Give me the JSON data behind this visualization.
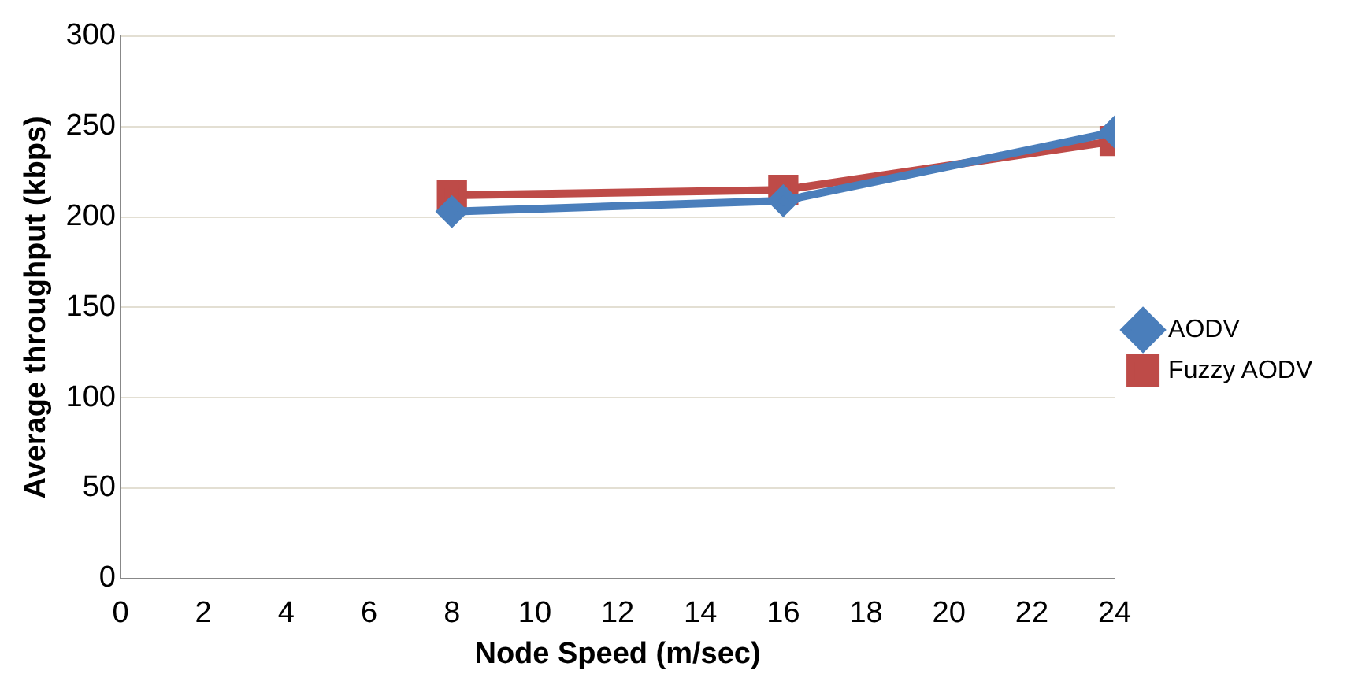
{
  "chart_data": {
    "type": "line",
    "xlabel": "Node Speed (m/sec)",
    "ylabel": "Average throughput (kbps)",
    "x": [
      8,
      16,
      24
    ],
    "series": [
      {
        "name": "AODV",
        "color": "#4a7ebb",
        "values": [
          203,
          209,
          247
        ],
        "marker": "diamond"
      },
      {
        "name": "Fuzzy AODV",
        "color": "#be4b48",
        "values": [
          212,
          215,
          242
        ],
        "marker": "square"
      }
    ],
    "xlim": [
      0,
      24
    ],
    "xticks": [
      0,
      2,
      4,
      6,
      8,
      10,
      12,
      14,
      16,
      18,
      20,
      22,
      24
    ],
    "ylim": [
      0,
      300
    ],
    "yticks": [
      0,
      50,
      100,
      150,
      200,
      250,
      300
    ],
    "grid": "y",
    "legend": "right",
    "line_style": "solid"
  }
}
